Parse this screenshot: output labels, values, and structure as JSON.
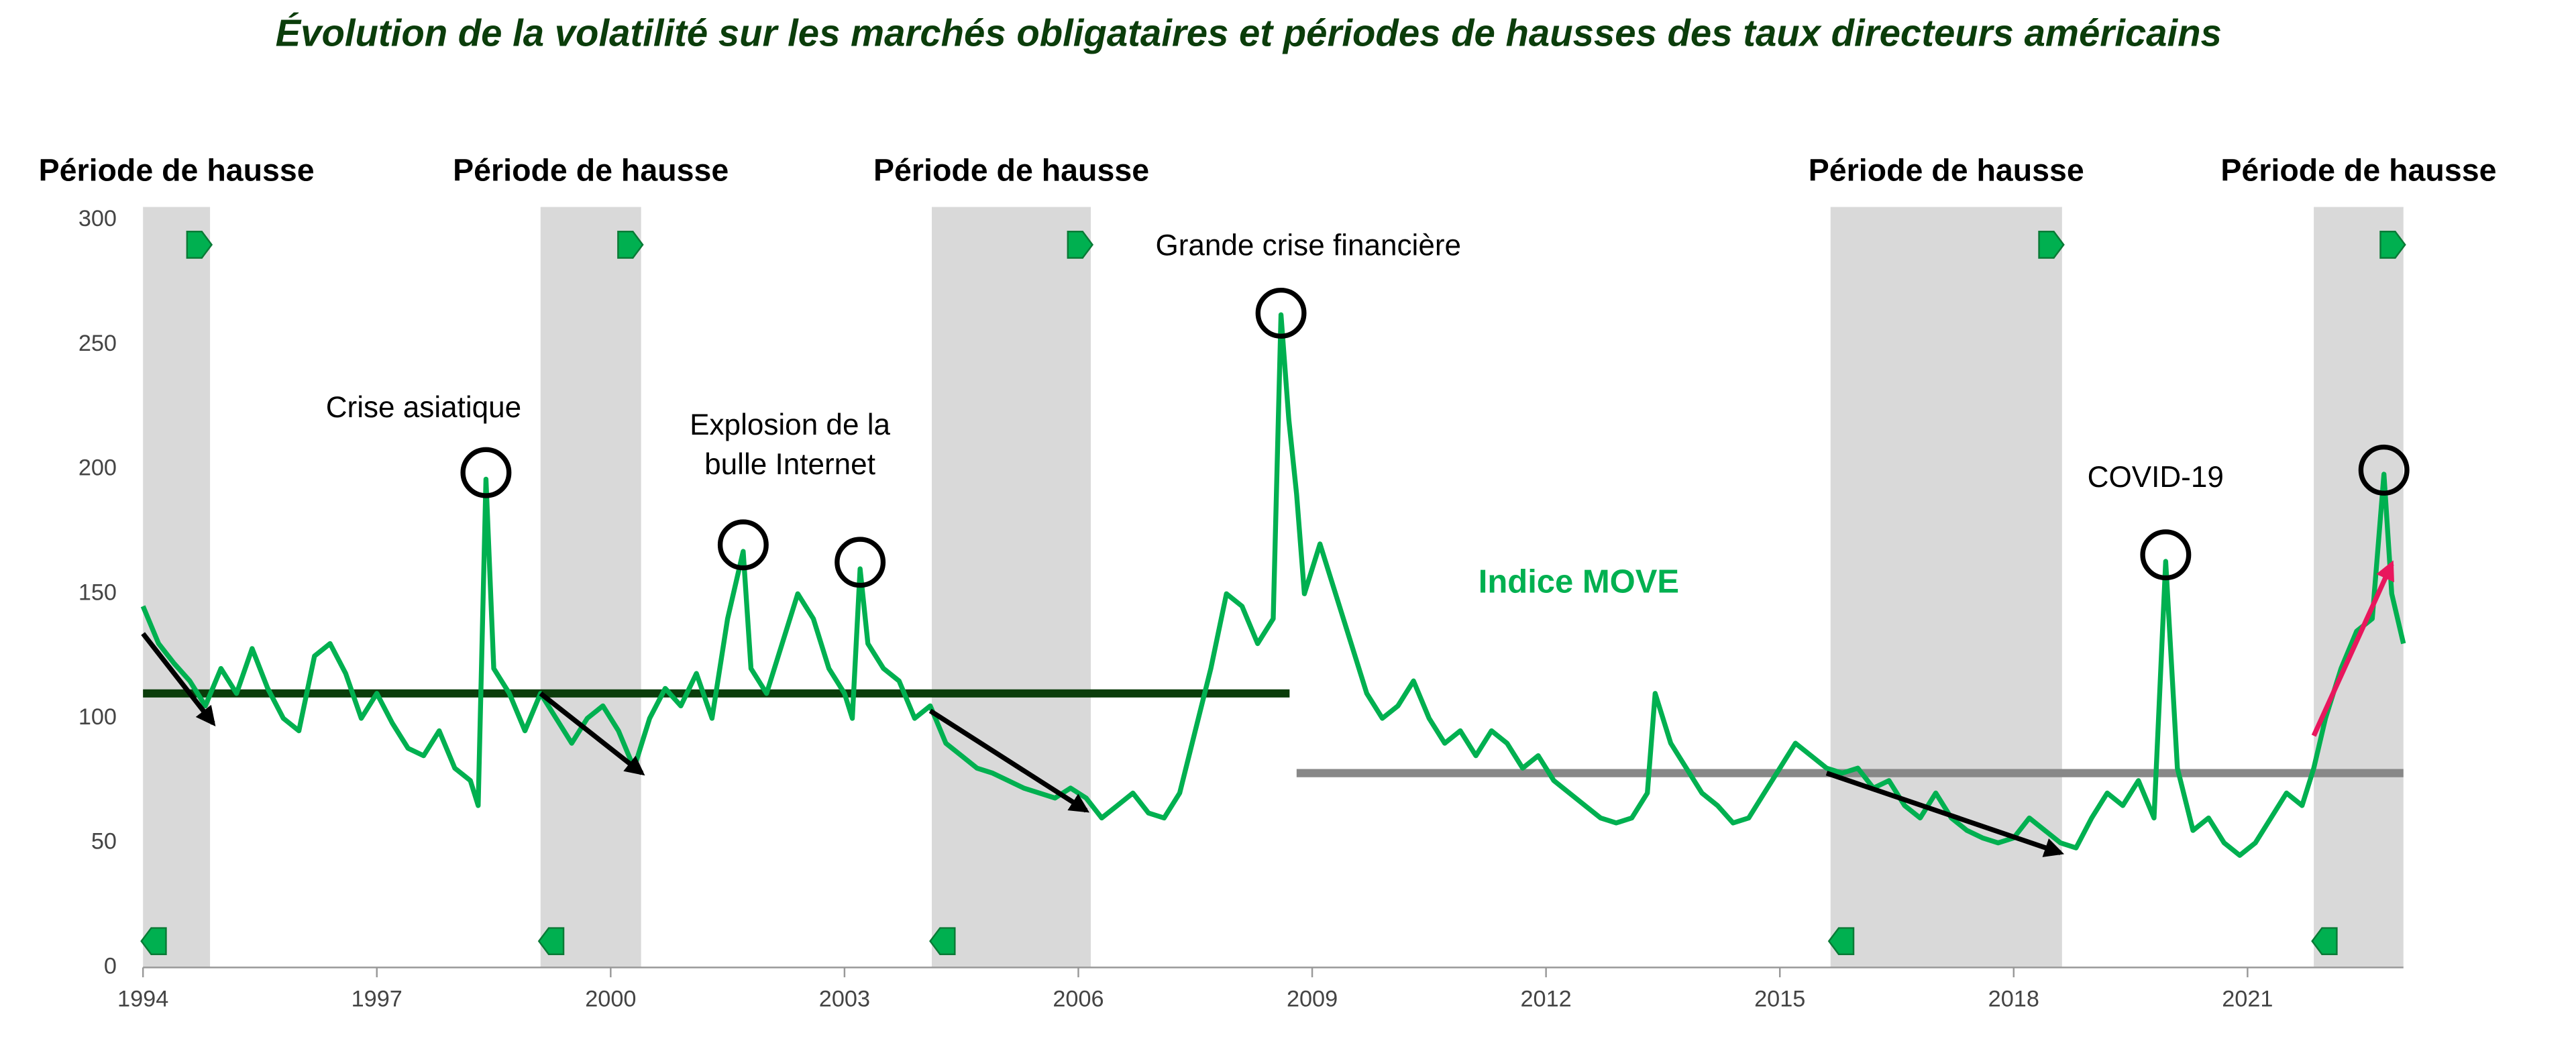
{
  "chart_data": {
    "type": "line",
    "title": "Évolution de la volatilité sur les marchés obligataires et périodes de hausses des taux directeurs américains",
    "xlim": [
      1994,
      2023
    ],
    "xticks": [
      1994,
      1997,
      2000,
      2003,
      2006,
      2009,
      2012,
      2015,
      2018,
      2021
    ],
    "ylim": [
      0,
      300
    ],
    "yticks": [
      0,
      50,
      100,
      150,
      200,
      250,
      300
    ],
    "grid": false,
    "x": [
      1994.0,
      1994.2,
      1994.4,
      1994.6,
      1994.8,
      1995.0,
      1995.2,
      1995.4,
      1995.6,
      1995.8,
      1996.0,
      1996.2,
      1996.4,
      1996.6,
      1996.8,
      1997.0,
      1997.2,
      1997.4,
      1997.6,
      1997.8,
      1998.0,
      1998.2,
      1998.3,
      1998.4,
      1998.5,
      1998.7,
      1998.9,
      1999.1,
      1999.3,
      1999.5,
      1999.7,
      1999.9,
      2000.1,
      2000.3,
      2000.5,
      2000.7,
      2000.9,
      2001.1,
      2001.3,
      2001.5,
      2001.7,
      2001.8,
      2002.0,
      2002.2,
      2002.4,
      2002.6,
      2002.8,
      2003.0,
      2003.1,
      2003.2,
      2003.3,
      2003.5,
      2003.7,
      2003.9,
      2004.1,
      2004.3,
      2004.5,
      2004.7,
      2004.9,
      2005.1,
      2005.3,
      2005.5,
      2005.7,
      2005.9,
      2006.1,
      2006.3,
      2006.5,
      2006.7,
      2006.9,
      2007.1,
      2007.3,
      2007.5,
      2007.7,
      2007.9,
      2008.1,
      2008.3,
      2008.5,
      2008.6,
      2008.7,
      2008.8,
      2008.9,
      2009.1,
      2009.3,
      2009.5,
      2009.7,
      2009.9,
      2010.1,
      2010.3,
      2010.5,
      2010.7,
      2010.9,
      2011.1,
      2011.3,
      2011.5,
      2011.7,
      2011.9,
      2012.1,
      2012.3,
      2012.5,
      2012.7,
      2012.9,
      2013.1,
      2013.3,
      2013.4,
      2013.6,
      2013.8,
      2014.0,
      2014.2,
      2014.4,
      2014.6,
      2014.8,
      2015.0,
      2015.2,
      2015.4,
      2015.6,
      2015.8,
      2016.0,
      2016.2,
      2016.4,
      2016.6,
      2016.8,
      2017.0,
      2017.2,
      2017.4,
      2017.6,
      2017.8,
      2018.0,
      2018.2,
      2018.4,
      2018.6,
      2018.8,
      2019.0,
      2019.2,
      2019.4,
      2019.6,
      2019.8,
      2019.95,
      2020.1,
      2020.3,
      2020.5,
      2020.7,
      2020.9,
      2021.1,
      2021.3,
      2021.5,
      2021.7,
      2021.85,
      2022.0,
      2022.2,
      2022.4,
      2022.6,
      2022.75,
      2022.85,
      2023.0
    ],
    "series": [
      {
        "name": "Indice MOVE",
        "color": "#00b050",
        "values": [
          145,
          130,
          122,
          115,
          105,
          120,
          110,
          128,
          112,
          100,
          95,
          125,
          130,
          118,
          100,
          110,
          98,
          88,
          85,
          95,
          80,
          75,
          65,
          196,
          120,
          110,
          95,
          110,
          100,
          90,
          100,
          105,
          95,
          80,
          100,
          112,
          105,
          118,
          100,
          140,
          167,
          120,
          110,
          130,
          150,
          140,
          120,
          110,
          100,
          160,
          130,
          120,
          115,
          100,
          105,
          90,
          85,
          80,
          78,
          75,
          72,
          70,
          68,
          72,
          68,
          60,
          65,
          70,
          62,
          60,
          70,
          95,
          120,
          150,
          145,
          130,
          140,
          262,
          220,
          190,
          150,
          170,
          150,
          130,
          110,
          100,
          105,
          115,
          100,
          90,
          95,
          85,
          95,
          90,
          80,
          85,
          75,
          70,
          65,
          60,
          58,
          60,
          70,
          110,
          90,
          80,
          70,
          65,
          58,
          60,
          70,
          80,
          90,
          85,
          80,
          78,
          80,
          72,
          75,
          65,
          60,
          70,
          60,
          55,
          52,
          50,
          52,
          60,
          55,
          50,
          48,
          60,
          70,
          65,
          75,
          60,
          163,
          80,
          55,
          60,
          50,
          45,
          50,
          60,
          70,
          65,
          80,
          100,
          120,
          135,
          140,
          198,
          150,
          130
        ],
        "label_x": 2012.42,
        "label_y": 154
      }
    ],
    "periods": [
      {
        "label": "Période de hausse",
        "start": 1994.0,
        "end": 1994.86
      },
      {
        "label": "Période de hausse",
        "start": 1999.1,
        "end": 2000.39
      },
      {
        "label": "Période de hausse",
        "start": 2004.12,
        "end": 2006.16
      },
      {
        "label": "Période de hausse",
        "start": 2015.65,
        "end": 2018.62
      },
      {
        "label": "Période de hausse",
        "start": 2021.85,
        "end": 2023.0
      }
    ],
    "levels": [
      {
        "value": 110,
        "start": 1994.0,
        "end": 2008.71,
        "color": "#0b3d0b"
      },
      {
        "value": 78,
        "start": 2008.8,
        "end": 2023.0,
        "color": "#888888"
      }
    ],
    "arrows": [
      {
        "x": [
          1994.0,
          1994.9
        ],
        "y": [
          134,
          98
        ],
        "color": "#000000"
      },
      {
        "x": [
          1999.1,
          2000.4
        ],
        "y": [
          110,
          78
        ],
        "color": "#000000"
      },
      {
        "x": [
          2004.1,
          2006.1
        ],
        "y": [
          103,
          63
        ],
        "color": "#000000"
      },
      {
        "x": [
          2015.6,
          2018.6
        ],
        "y": [
          78,
          46
        ],
        "color": "#000000"
      },
      {
        "x": [
          2021.85,
          2022.85
        ],
        "y": [
          93,
          162
        ],
        "color": "#e8175d"
      }
    ],
    "highlights": [
      {
        "x": 1998.4,
        "y": 196
      },
      {
        "x": 2001.7,
        "y": 167
      },
      {
        "x": 2003.2,
        "y": 160
      },
      {
        "x": 2008.6,
        "y": 260
      },
      {
        "x": 2019.95,
        "y": 163
      },
      {
        "x": 2022.75,
        "y": 197
      }
    ],
    "annotations": [
      {
        "text": [
          "Crise asiatique"
        ],
        "x": 1997.6,
        "y": 224
      },
      {
        "text": [
          "Explosion de la",
          "bulle Internet"
        ],
        "x": 2002.3,
        "y": 217
      },
      {
        "text": [
          "Grande crise financière"
        ],
        "x": 2008.95,
        "y": 289
      },
      {
        "text": [
          "COVID-19"
        ],
        "x": 2019.82,
        "y": 196
      }
    ]
  }
}
